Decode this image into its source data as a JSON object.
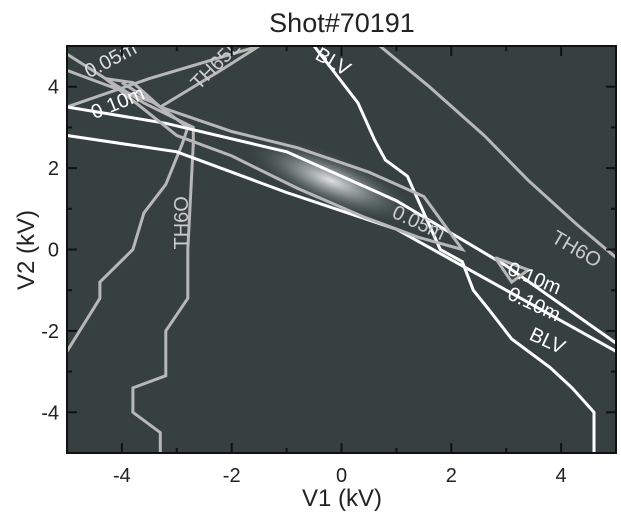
{
  "chart_data": {
    "type": "heatmap",
    "title": "Shot#70191",
    "xlabel": "V1 (kV)",
    "ylabel": "V2 (kV)",
    "xlim": [
      -5,
      5
    ],
    "ylim": [
      -5,
      5
    ],
    "x_ticks": [
      -4,
      -2,
      0,
      2,
      4
    ],
    "y_ticks": [
      -4,
      -2,
      0,
      2,
      4
    ],
    "colors": {
      "background": "#364040",
      "contour_white": "#ffffff",
      "contour_grey": "#b8b8b8"
    },
    "series": [
      {
        "name": "TH6O",
        "color": "grey",
        "points": [
          [
            -3.3,
            -5
          ],
          [
            -3.3,
            -4.5
          ],
          [
            -3.8,
            -4
          ],
          [
            -3.8,
            -3.4
          ],
          [
            -3.2,
            -3.1
          ],
          [
            -3.2,
            -2
          ],
          [
            -2.8,
            -1.2
          ],
          [
            -2.8,
            0
          ],
          [
            -2.7,
            2.6
          ],
          [
            -2.7,
            3.0
          ],
          [
            -3.6,
            3.6
          ],
          [
            -5,
            4.8
          ]
        ]
      },
      {
        "name": "TH6O",
        "color": "grey",
        "points": [
          [
            -5,
            -2.5
          ],
          [
            -4.4,
            -1.2
          ],
          [
            -4.4,
            -0.8
          ],
          [
            -3.8,
            0
          ],
          [
            -3.6,
            0.9
          ],
          [
            -3.2,
            1.6
          ],
          [
            -2.9,
            2.6
          ],
          [
            -2.8,
            3.0
          ],
          [
            -3.4,
            3.6
          ],
          [
            -5,
            4.4
          ]
        ]
      },
      {
        "name": "TH6O",
        "color": "grey",
        "points": [
          [
            -5,
            3.5
          ],
          [
            -3.5,
            4.2
          ],
          [
            -1.5,
            5.0
          ]
        ]
      },
      {
        "name": "TH6O",
        "color": "grey",
        "points": [
          [
            0.7,
            5.0
          ],
          [
            1.6,
            4.0
          ],
          [
            2.6,
            2.8
          ],
          [
            3.4,
            1.7
          ],
          [
            4.3,
            0.6
          ],
          [
            5.0,
            -0.2
          ]
        ]
      },
      {
        "name": "TH65L",
        "color": "grey",
        "points": [
          [
            -4.0,
            4.1
          ],
          [
            -3.3,
            3.5
          ],
          [
            -2.2,
            4.4
          ],
          [
            -1.5,
            5.0
          ]
        ]
      },
      {
        "name": "BLV",
        "color": "white",
        "points": [
          [
            -0.5,
            5.0
          ],
          [
            0.3,
            3.6
          ],
          [
            0.6,
            2.7
          ],
          [
            0.8,
            2.2
          ],
          [
            1.2,
            1.8
          ],
          [
            1.4,
            1.2
          ],
          [
            1.6,
            0.6
          ],
          [
            1.8,
            0.0
          ],
          [
            2.2,
            -0.3
          ],
          [
            2.4,
            -1.0
          ],
          [
            2.7,
            -1.5
          ],
          [
            3.1,
            -2.2
          ],
          [
            3.8,
            -2.9
          ],
          [
            4.2,
            -3.4
          ],
          [
            4.6,
            -4.0
          ],
          [
            4.6,
            -5.0
          ]
        ]
      },
      {
        "name": "0.10m",
        "color": "white",
        "points": [
          [
            -5,
            3.5
          ],
          [
            -3.2,
            3.1
          ],
          [
            -1.0,
            2.4
          ],
          [
            1.0,
            1.2
          ],
          [
            3.0,
            -0.4
          ],
          [
            5.0,
            -2.3
          ]
        ]
      },
      {
        "name": "0.10m",
        "color": "white",
        "points": [
          [
            -5,
            2.8
          ],
          [
            -3.0,
            2.4
          ],
          [
            -1.0,
            1.4
          ],
          [
            1.0,
            0.5
          ],
          [
            3.0,
            -1.0
          ],
          [
            5.0,
            -2.5
          ]
        ]
      },
      {
        "name": "0.05m",
        "color": "grey",
        "points": [
          [
            -4.3,
            4.2
          ],
          [
            -3.8,
            4.1
          ],
          [
            -3.3,
            3.5
          ],
          [
            -2.0,
            2.9
          ],
          [
            -0.8,
            2.5
          ],
          [
            0.5,
            1.9
          ],
          [
            1.5,
            1.3
          ],
          [
            2.2,
            0.0
          ],
          [
            1.4,
            0.3
          ],
          [
            0.4,
            0.8
          ],
          [
            -0.8,
            1.5
          ],
          [
            -2.0,
            2.3
          ],
          [
            -3.0,
            2.8
          ],
          [
            -4.3,
            4.2
          ]
        ]
      },
      {
        "name": "0.10m",
        "color": "grey",
        "points": [
          [
            2.8,
            -0.2
          ],
          [
            3.4,
            -0.5
          ],
          [
            3.1,
            -0.8
          ],
          [
            2.8,
            -0.2
          ]
        ]
      }
    ],
    "labels": [
      "0.05m",
      "0.10m",
      "TH65L",
      "BLV",
      "TH6O",
      "0.05m",
      "TH6O",
      "0.10m",
      "0.10m",
      "BLV"
    ]
  }
}
